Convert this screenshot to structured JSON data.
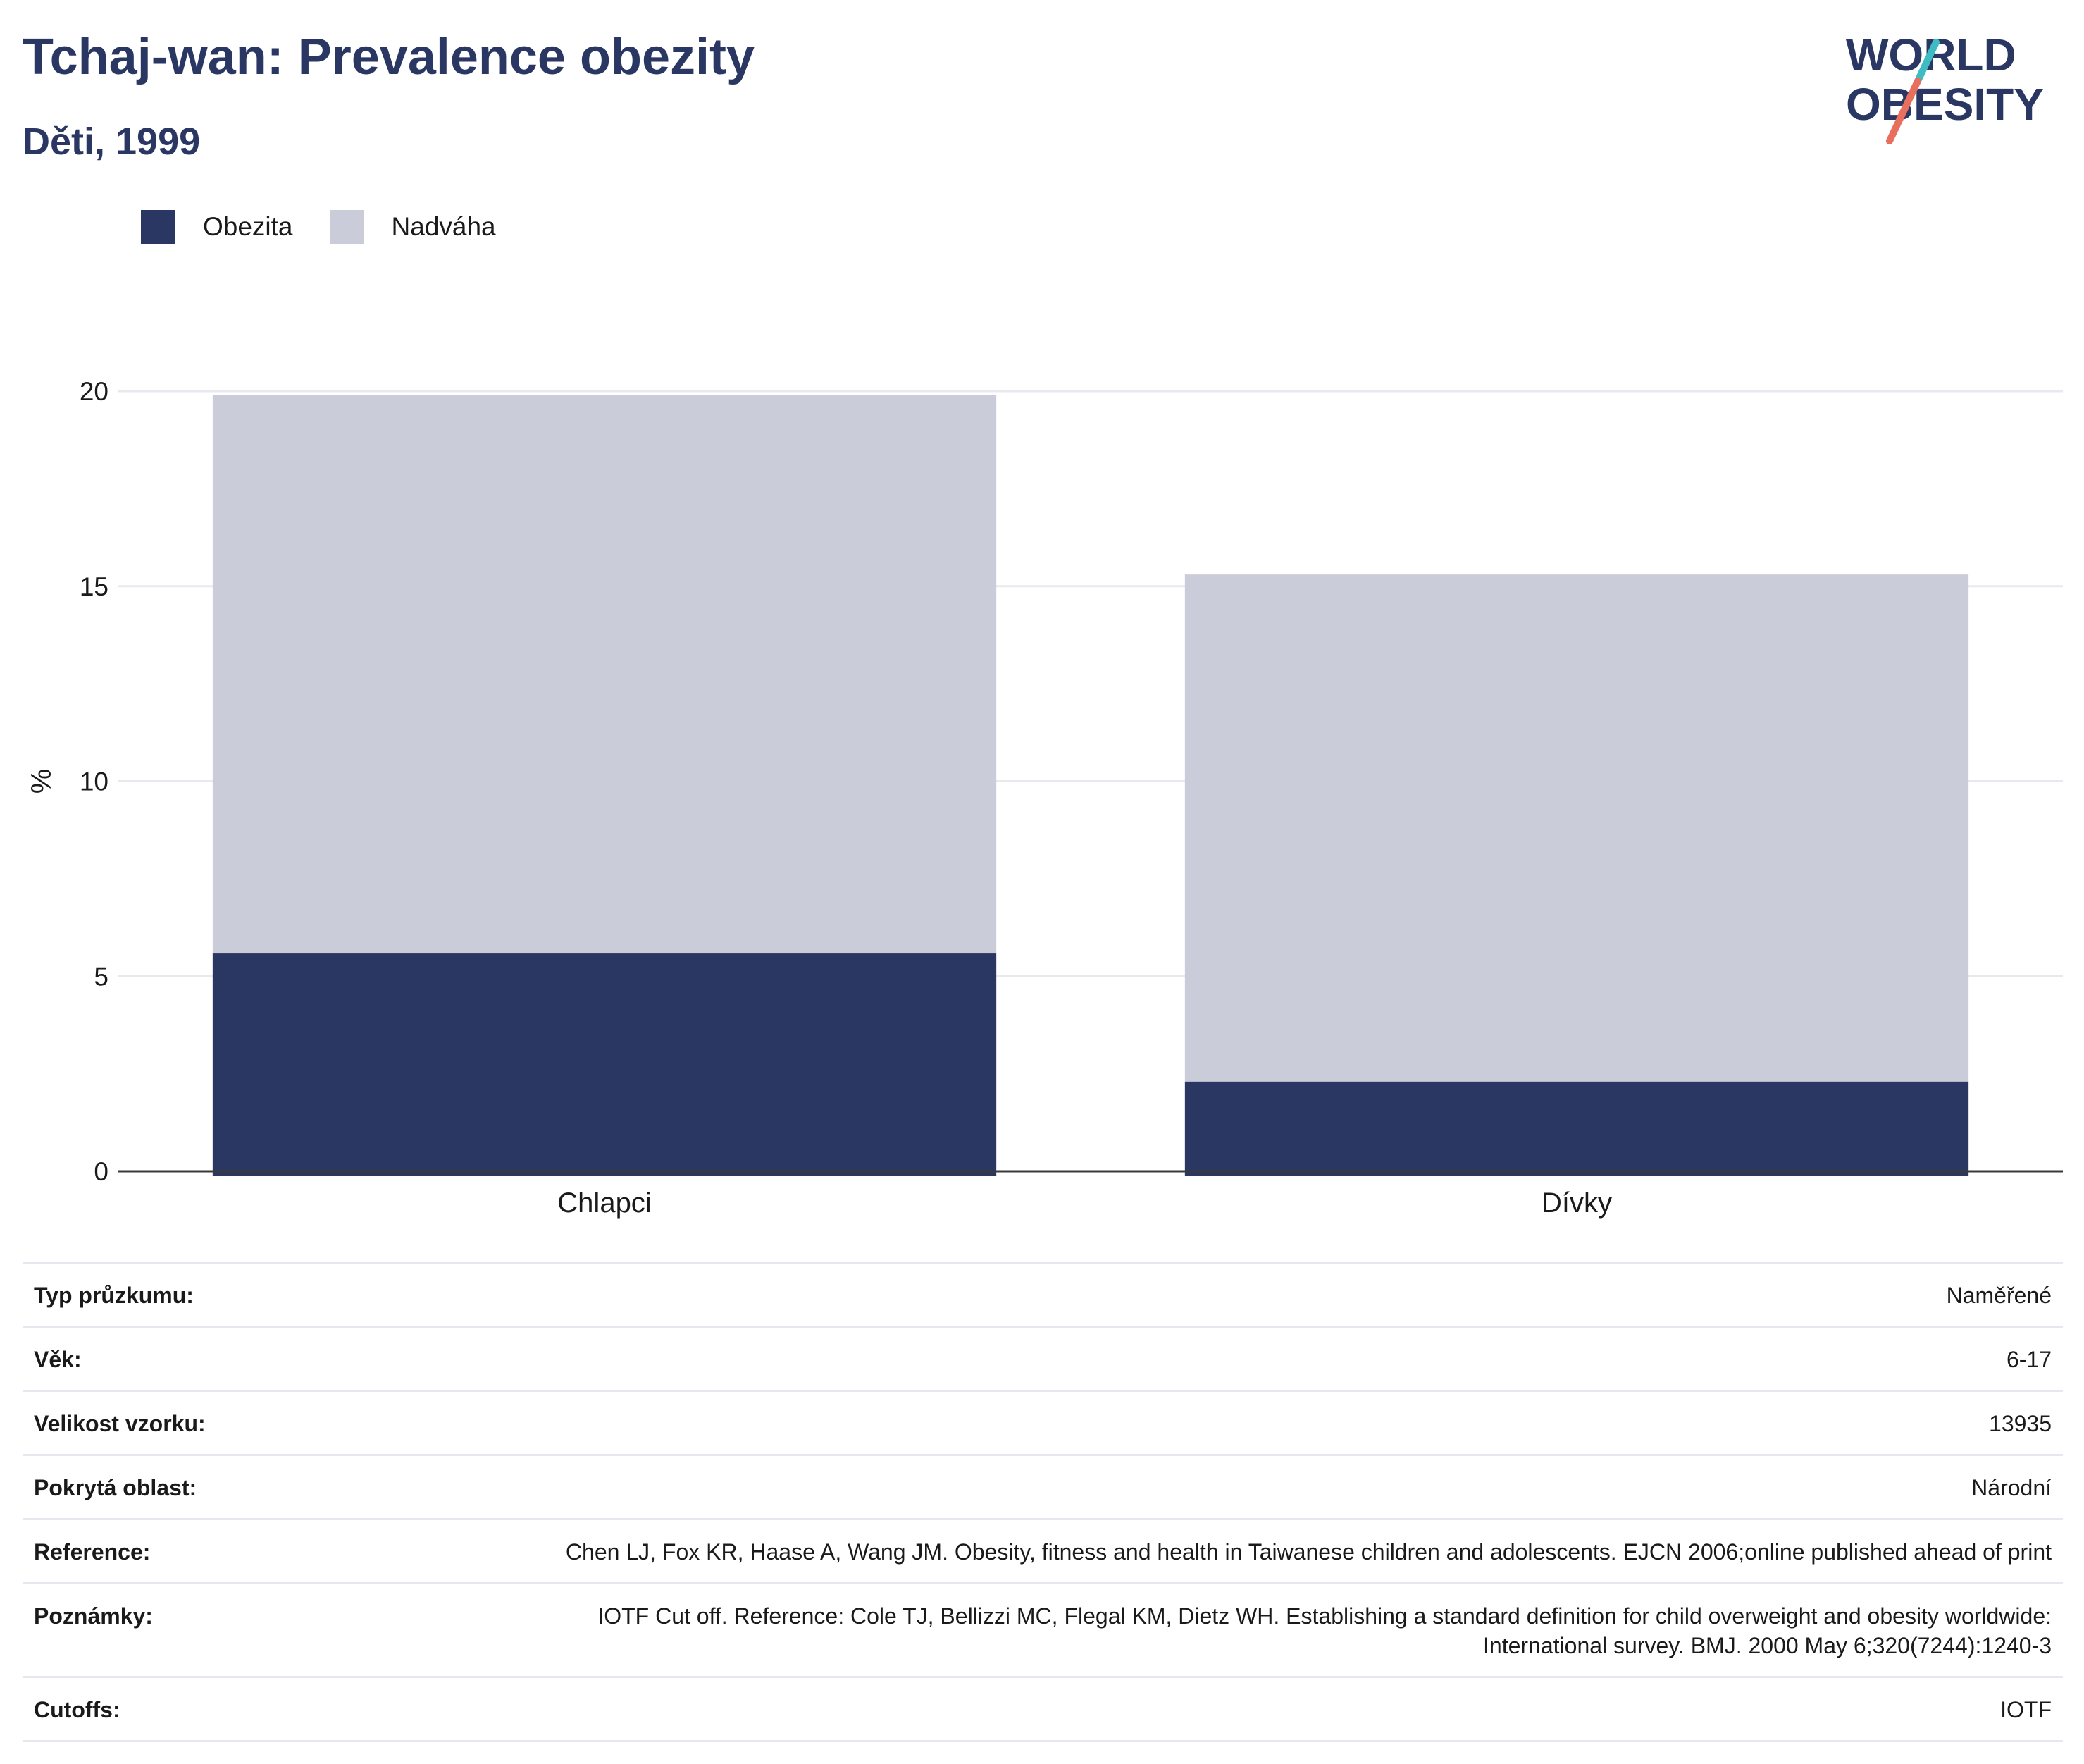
{
  "header": {
    "title": "Tchaj-wan: Prevalence obezity",
    "subtitle": "Děti, 1999"
  },
  "logo": {
    "line1": "WORLD",
    "line2": "OBESITY",
    "colors": {
      "navy": "#2a3763",
      "teal": "#3fbcc3",
      "coral": "#e86f5d"
    }
  },
  "legend": {
    "items": [
      {
        "label": "Obezita",
        "color": "#2a3763"
      },
      {
        "label": "Nadváha",
        "color": "#cacdd9"
      }
    ]
  },
  "chart_data": {
    "type": "bar",
    "stacked": true,
    "categories": [
      "Chlapci",
      "Dívky"
    ],
    "series": [
      {
        "name": "Obezita",
        "values": [
          5.6,
          2.3
        ],
        "color": "#2a3763"
      },
      {
        "name": "Nadváha",
        "values": [
          14.3,
          13.0
        ],
        "color": "#cacdd9"
      }
    ],
    "ylabel": "%",
    "ylim": [
      0,
      20
    ],
    "yticks": [
      0,
      5,
      10,
      15,
      20
    ],
    "grid": true,
    "legend_position": "top-left"
  },
  "metadata": {
    "rows": [
      {
        "key": "Typ průzkumu:",
        "value": "Naměřené"
      },
      {
        "key": "Věk:",
        "value": "6-17"
      },
      {
        "key": "Velikost vzorku:",
        "value": "13935"
      },
      {
        "key": "Pokrytá oblast:",
        "value": "Národní"
      },
      {
        "key": "Reference:",
        "value": "Chen LJ, Fox KR, Haase A, Wang JM. Obesity, fitness and health in Taiwanese children and adolescents. EJCN 2006;online published ahead of print"
      },
      {
        "key": "Poznámky:",
        "value": "IOTF Cut off. Reference: Cole TJ, Bellizzi MC, Flegal KM, Dietz WH. Establishing a standard definition for child overweight and obesity worldwide: International survey. BMJ. 2000 May 6;320(7244):1240-3"
      },
      {
        "key": "Cutoffs:",
        "value": "IOTF"
      }
    ]
  }
}
